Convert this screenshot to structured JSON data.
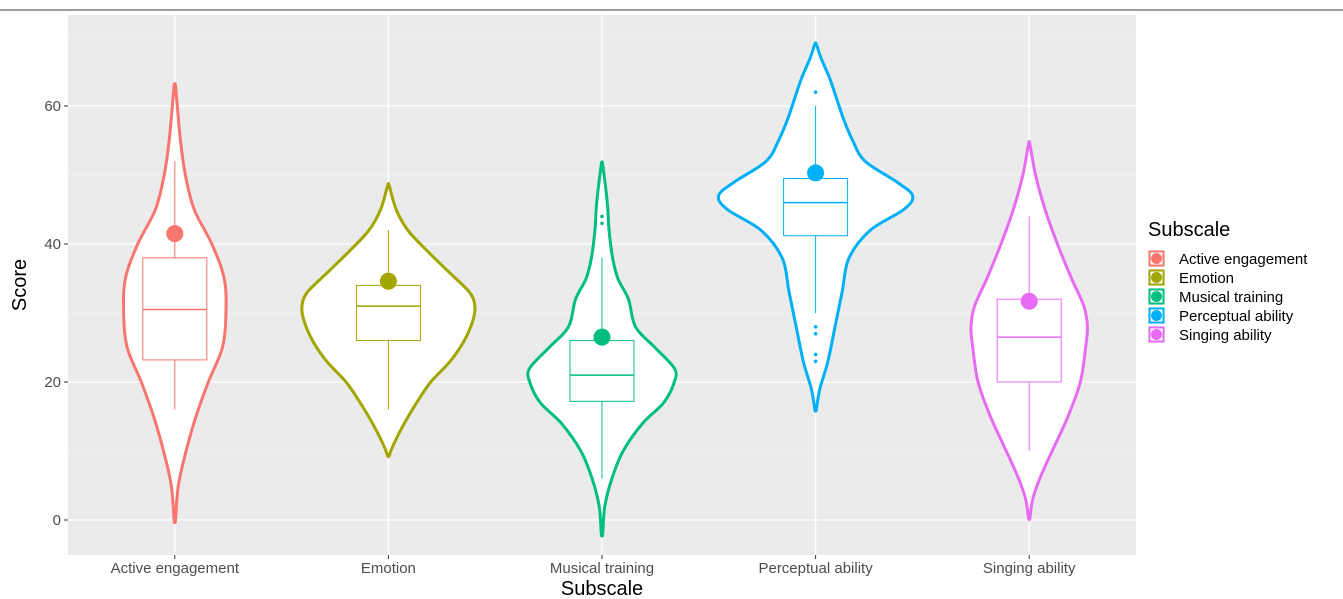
{
  "chart_data": {
    "type": "violin",
    "xlabel": "Subscale",
    "ylabel": "Score",
    "ylim": [
      -5,
      70
    ],
    "yticks": [
      0,
      20,
      40,
      60
    ],
    "grid": true,
    "legend": {
      "title": "Subscale",
      "position": "right",
      "entries": [
        "Active engagement",
        "Emotion",
        "Musical training",
        "Perceptual ability",
        "Singing ability"
      ]
    },
    "categories": [
      "Active engagement",
      "Emotion",
      "Musical training",
      "Perceptual ability",
      "Singing ability"
    ],
    "series": [
      {
        "name": "Active engagement",
        "color": "#F8766D",
        "violin": [
          [
            0,
            0.02
          ],
          [
            5,
            0.1
          ],
          [
            10,
            0.32
          ],
          [
            15,
            0.6
          ],
          [
            20,
            0.95
          ],
          [
            25,
            1.35
          ],
          [
            30,
            1.45
          ],
          [
            35,
            1.4
          ],
          [
            40,
            1.05
          ],
          [
            45,
            0.55
          ],
          [
            50,
            0.3
          ],
          [
            55,
            0.16
          ],
          [
            60,
            0.07
          ],
          [
            63,
            0.02
          ]
        ],
        "box": {
          "min": 16,
          "q1": 23.2,
          "median": 30.5,
          "q3": 38,
          "max": 52
        },
        "outliers": [],
        "mean": 41.5
      },
      {
        "name": "Emotion",
        "color": "#A3A500",
        "violin": [
          [
            9.3,
            0.02
          ],
          [
            11,
            0.15
          ],
          [
            14,
            0.45
          ],
          [
            17,
            0.8
          ],
          [
            20,
            1.2
          ],
          [
            23,
            1.75
          ],
          [
            26,
            2.15
          ],
          [
            29,
            2.4
          ],
          [
            31,
            2.45
          ],
          [
            33,
            2.3
          ],
          [
            36,
            1.7
          ],
          [
            39,
            1.1
          ],
          [
            42,
            0.55
          ],
          [
            45,
            0.22
          ],
          [
            48.5,
            0.02
          ]
        ],
        "box": {
          "min": 16,
          "q1": 26,
          "median": 31,
          "q3": 34,
          "max": 42
        },
        "outliers": [],
        "mean": 34.6
      },
      {
        "name": "Musical training",
        "color": "#00BF7D",
        "violin": [
          [
            -2,
            0.02
          ],
          [
            2,
            0.08
          ],
          [
            6,
            0.28
          ],
          [
            10,
            0.6
          ],
          [
            14,
            1.15
          ],
          [
            17,
            1.75
          ],
          [
            20,
            2.05
          ],
          [
            22,
            2.05
          ],
          [
            25,
            1.5
          ],
          [
            28,
            0.95
          ],
          [
            32,
            0.75
          ],
          [
            35,
            0.45
          ],
          [
            38,
            0.3
          ],
          [
            42,
            0.2
          ],
          [
            46,
            0.15
          ],
          [
            51.5,
            0.02
          ]
        ],
        "box": {
          "min": 6,
          "q1": 17.2,
          "median": 21,
          "q3": 26,
          "max": 38
        },
        "outliers": [
          43,
          44
        ],
        "mean": 26.5
      },
      {
        "name": "Perceptual ability",
        "color": "#00B0F6",
        "violin": [
          [
            16,
            0.02
          ],
          [
            19,
            0.12
          ],
          [
            23,
            0.35
          ],
          [
            28,
            0.55
          ],
          [
            33,
            0.75
          ],
          [
            38,
            0.95
          ],
          [
            42,
            1.55
          ],
          [
            45,
            2.5
          ],
          [
            47,
            2.75
          ],
          [
            49,
            2.3
          ],
          [
            52,
            1.4
          ],
          [
            55,
            1.05
          ],
          [
            58,
            0.8
          ],
          [
            61,
            0.6
          ],
          [
            64,
            0.4
          ],
          [
            67,
            0.15
          ],
          [
            69,
            0.02
          ]
        ],
        "box": {
          "min": 30,
          "q1": 41.2,
          "median": 46,
          "q3": 49.5,
          "max": 60
        },
        "outliers": [
          62,
          28,
          27,
          24,
          23
        ],
        "mean": 50.3
      },
      {
        "name": "Singing ability",
        "color": "#E76BF3",
        "violin": [
          [
            0.3,
            0.02
          ],
          [
            3,
            0.1
          ],
          [
            6,
            0.3
          ],
          [
            10,
            0.65
          ],
          [
            15,
            1.1
          ],
          [
            20,
            1.45
          ],
          [
            25,
            1.6
          ],
          [
            28,
            1.65
          ],
          [
            31,
            1.55
          ],
          [
            35,
            1.2
          ],
          [
            40,
            0.8
          ],
          [
            45,
            0.45
          ],
          [
            50,
            0.18
          ],
          [
            54.5,
            0.02
          ]
        ],
        "box": {
          "min": 10,
          "q1": 20,
          "median": 26.5,
          "q3": 32,
          "max": 44
        },
        "outliers": [],
        "mean": 31.7
      }
    ]
  }
}
